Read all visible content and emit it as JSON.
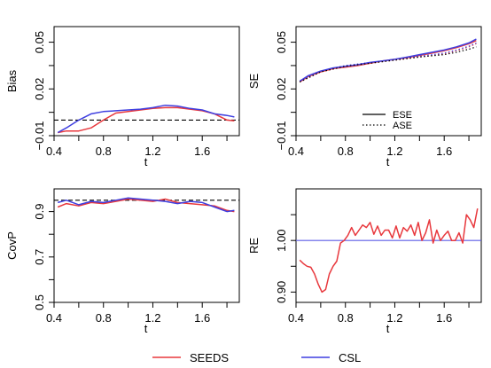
{
  "chart_data": [
    {
      "type": "line",
      "title": "",
      "xlabel": "t",
      "ylabel": "Bias",
      "xlim": [
        0.4,
        1.9
      ],
      "ylim": [
        -0.01,
        0.06
      ],
      "xticks": [
        "0.4",
        "0.8",
        "1.2",
        "1.6"
      ],
      "yticks": [
        "−0.01",
        "0.02",
        "0.05"
      ],
      "reference_line": {
        "y": 0.0,
        "style": "dashed",
        "color": "#000000"
      },
      "series": [
        {
          "name": "SEEDS",
          "color": "#e8383d",
          "x": [
            0.43,
            0.5,
            0.6,
            0.7,
            0.8,
            0.9,
            1.0,
            1.1,
            1.2,
            1.3,
            1.4,
            1.5,
            1.6,
            1.7,
            1.8,
            1.86
          ],
          "y": [
            -0.008,
            -0.007,
            -0.007,
            -0.005,
            0.0,
            0.0045,
            0.0055,
            0.0065,
            0.0075,
            0.008,
            0.008,
            0.007,
            0.006,
            0.004,
            0.0,
            -0.0005
          ]
        },
        {
          "name": "CSL",
          "color": "#3f3fe0",
          "x": [
            0.43,
            0.5,
            0.6,
            0.7,
            0.8,
            0.9,
            1.0,
            1.1,
            1.2,
            1.3,
            1.4,
            1.5,
            1.6,
            1.7,
            1.8,
            1.86
          ],
          "y": [
            -0.008,
            -0.005,
            0.0,
            0.004,
            0.0055,
            0.006,
            0.0065,
            0.007,
            0.008,
            0.0095,
            0.009,
            0.0075,
            0.0065,
            0.004,
            0.003,
            0.002
          ]
        }
      ]
    },
    {
      "type": "line",
      "title": "",
      "xlabel": "t",
      "ylabel": "SE",
      "xlim": [
        0.4,
        1.9
      ],
      "ylim": [
        -0.01,
        0.06
      ],
      "xticks": [
        "0.4",
        "0.8",
        "1.2",
        "1.6"
      ],
      "yticks": [
        "−0.01",
        "0.02",
        "0.05"
      ],
      "legend": {
        "position": "bottom-right",
        "entries": [
          {
            "label": "ESE",
            "style": "solid"
          },
          {
            "label": "ASE",
            "style": "dotted"
          }
        ]
      },
      "series": [
        {
          "name": "SEEDS ESE",
          "color": "#e8383d",
          "style": "solid",
          "x": [
            0.43,
            0.5,
            0.6,
            0.7,
            0.8,
            0.9,
            1.0,
            1.1,
            1.2,
            1.3,
            1.4,
            1.5,
            1.6,
            1.7,
            1.8,
            1.86
          ],
          "y": [
            0.0245,
            0.028,
            0.031,
            0.033,
            0.034,
            0.035,
            0.0365,
            0.038,
            0.039,
            0.04,
            0.0415,
            0.043,
            0.0445,
            0.0465,
            0.049,
            0.051
          ]
        },
        {
          "name": "CSL ESE",
          "color": "#3f3fe0",
          "style": "solid",
          "x": [
            0.43,
            0.5,
            0.6,
            0.7,
            0.8,
            0.9,
            1.0,
            1.1,
            1.2,
            1.3,
            1.4,
            1.5,
            1.6,
            1.7,
            1.8,
            1.86
          ],
          "y": [
            0.025,
            0.0285,
            0.0315,
            0.0335,
            0.0345,
            0.0355,
            0.037,
            0.038,
            0.039,
            0.0405,
            0.042,
            0.0435,
            0.045,
            0.047,
            0.0495,
            0.052
          ]
        },
        {
          "name": "SEEDS ASE",
          "color": "#e8383d",
          "style": "dotted",
          "x": [
            0.43,
            0.6,
            0.8,
            1.0,
            1.2,
            1.4,
            1.6,
            1.7,
            1.8,
            1.86
          ],
          "y": [
            0.0245,
            0.031,
            0.0345,
            0.0365,
            0.0385,
            0.0405,
            0.0425,
            0.0445,
            0.047,
            0.049
          ]
        },
        {
          "name": "CSL ASE",
          "color": "#3f3fe0",
          "style": "dotted",
          "x": [
            0.43,
            0.6,
            0.8,
            1.0,
            1.2,
            1.4,
            1.6,
            1.7,
            1.8,
            1.86
          ],
          "y": [
            0.025,
            0.0315,
            0.035,
            0.037,
            0.039,
            0.041,
            0.043,
            0.045,
            0.0475,
            0.0495
          ]
        },
        {
          "name": "ASE",
          "color": "#000000",
          "style": "dotted",
          "x": [
            0.43,
            0.6,
            0.8,
            1.0,
            1.2,
            1.4,
            1.6,
            1.7,
            1.8,
            1.86
          ],
          "y": [
            0.0245,
            0.031,
            0.0345,
            0.0365,
            0.0385,
            0.0405,
            0.042,
            0.0435,
            0.0455,
            0.047
          ]
        }
      ]
    },
    {
      "type": "line",
      "title": "",
      "xlabel": "t",
      "ylabel": "CovP",
      "xlim": [
        0.4,
        1.9
      ],
      "ylim": [
        0.5,
        1.0
      ],
      "xticks": [
        "0.4",
        "0.8",
        "1.2",
        "1.6"
      ],
      "yticks": [
        "0.5",
        "0.7",
        "0.9"
      ],
      "reference_line": {
        "y": 0.95,
        "style": "dashed",
        "color": "#000000"
      },
      "series": [
        {
          "name": "SEEDS",
          "color": "#e8383d",
          "x": [
            0.43,
            0.5,
            0.6,
            0.7,
            0.8,
            0.9,
            1.0,
            1.1,
            1.2,
            1.3,
            1.4,
            1.5,
            1.6,
            1.7,
            1.8,
            1.86
          ],
          "y": [
            0.92,
            0.935,
            0.925,
            0.94,
            0.935,
            0.945,
            0.955,
            0.95,
            0.945,
            0.955,
            0.94,
            0.935,
            0.93,
            0.925,
            0.905,
            0.9
          ]
        },
        {
          "name": "CSL",
          "color": "#3f3fe0",
          "x": [
            0.43,
            0.5,
            0.6,
            0.7,
            0.8,
            0.9,
            1.0,
            1.1,
            1.2,
            1.3,
            1.4,
            1.5,
            1.6,
            1.7,
            1.8,
            1.86
          ],
          "y": [
            0.94,
            0.95,
            0.93,
            0.945,
            0.94,
            0.95,
            0.96,
            0.955,
            0.95,
            0.945,
            0.935,
            0.945,
            0.94,
            0.92,
            0.9,
            0.905
          ]
        }
      ]
    },
    {
      "type": "line",
      "title": "",
      "xlabel": "t",
      "ylabel": "RE",
      "xlim": [
        0.4,
        1.9
      ],
      "ylim": [
        0.88,
        1.1
      ],
      "xticks": [
        "0.4",
        "0.8",
        "1.2",
        "1.6"
      ],
      "yticks": [
        "0.90",
        "1.00"
      ],
      "reference_line": {
        "y": 1.0,
        "style": "solid",
        "color": "#5c5ce6"
      },
      "series": [
        {
          "name": "SEEDS",
          "color": "#e8383d",
          "x": [
            0.43,
            0.46,
            0.49,
            0.52,
            0.55,
            0.58,
            0.61,
            0.64,
            0.67,
            0.7,
            0.73,
            0.76,
            0.79,
            0.82,
            0.85,
            0.88,
            0.91,
            0.94,
            0.97,
            1.0,
            1.03,
            1.06,
            1.09,
            1.12,
            1.15,
            1.18,
            1.21,
            1.24,
            1.27,
            1.3,
            1.33,
            1.36,
            1.39,
            1.42,
            1.45,
            1.48,
            1.51,
            1.54,
            1.57,
            1.6,
            1.63,
            1.66,
            1.69,
            1.72,
            1.75,
            1.78,
            1.81,
            1.84,
            1.87
          ],
          "y": [
            0.962,
            0.955,
            0.95,
            0.948,
            0.935,
            0.915,
            0.9,
            0.905,
            0.935,
            0.95,
            0.96,
            0.995,
            1.0,
            1.01,
            1.025,
            1.01,
            1.02,
            1.03,
            1.025,
            1.035,
            1.012,
            1.028,
            1.01,
            1.02,
            1.02,
            1.005,
            1.028,
            1.005,
            1.025,
            1.018,
            1.03,
            1.01,
            1.035,
            1.0,
            1.015,
            1.04,
            0.995,
            1.02,
            1.0,
            1.01,
            1.018,
            1.0,
            1.0,
            1.015,
            0.995,
            1.05,
            1.04,
            1.025,
            1.062
          ]
        }
      ]
    }
  ],
  "legend": {
    "entries": [
      {
        "label": "SEEDS",
        "color": "#e8383d"
      },
      {
        "label": "CSL",
        "color": "#3f3fe0"
      }
    ]
  }
}
